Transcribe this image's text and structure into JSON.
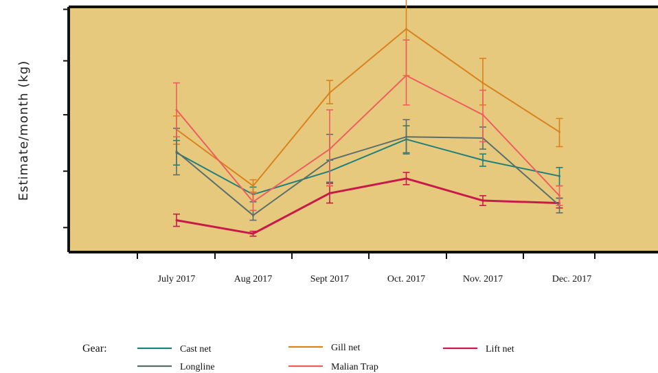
{
  "chart_data": {
    "type": "line",
    "title": "",
    "xlabel": "",
    "ylabel": "Estimate/month  (kg)",
    "categories": [
      "July 2017",
      "Aug 2017",
      "Sept 2017",
      "Oct. 2017",
      "Nov. 2017",
      "Dec.  2017"
    ],
    "ylim": [
      0,
      100
    ],
    "y_ticks": [
      10,
      33,
      56,
      78,
      99
    ],
    "y_tick_labels": [
      "",
      "",
      "",
      "",
      ""
    ],
    "background": "#e6c97d",
    "grid": false,
    "legend": {
      "title": "Gear:",
      "placement": "bottom"
    },
    "series": [
      {
        "name": "Cast net",
        "color": "#1f7f7c",
        "values": [
          40.5,
          23.5,
          33,
          46,
          37.5,
          31
        ],
        "err_low": [
          35.5,
          20.5,
          28.5,
          40.5,
          35,
          27
        ],
        "err_high": [
          45.5,
          26.5,
          37.5,
          51.5,
          40,
          34.5
        ]
      },
      {
        "name": "Gill net",
        "color": "#d9821e",
        "values": [
          50,
          27,
          65,
          91,
          69,
          49
        ],
        "err_low": [
          44,
          24.5,
          60.5,
          72,
          60,
          43
        ],
        "err_high": [
          55.5,
          29.5,
          70,
          107,
          79,
          54.5
        ]
      },
      {
        "name": "Lift net",
        "color": "#c8194a",
        "values": [
          13,
          7.5,
          24,
          30,
          21,
          20
        ],
        "err_low": [
          10.5,
          6.5,
          20,
          27.5,
          19,
          18
        ],
        "err_high": [
          15.5,
          8.5,
          28,
          32.5,
          23,
          22
        ]
      },
      {
        "name": "Longline",
        "color": "#5a6e6c",
        "values": [
          41,
          15,
          37.5,
          47,
          46.5,
          19
        ],
        "err_low": [
          31.5,
          13,
          27,
          40,
          42,
          16
        ],
        "err_high": [
          50.5,
          17,
          48,
          54,
          51,
          22
        ]
      },
      {
        "name": "Malian Trap",
        "color": "#ef5e5e",
        "values": [
          58,
          20.5,
          42,
          72,
          56,
          23
        ],
        "err_low": [
          47,
          17,
          27,
          60,
          45,
          19
        ],
        "err_high": [
          69,
          24,
          58,
          86.5,
          66,
          27
        ]
      }
    ]
  }
}
